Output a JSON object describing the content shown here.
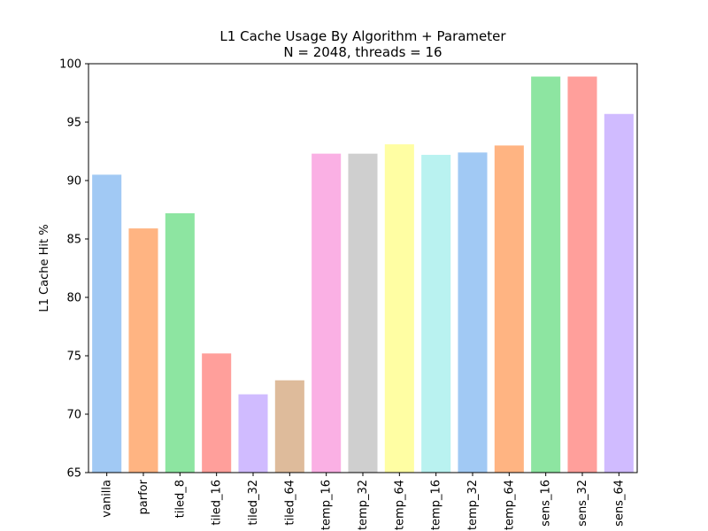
{
  "chart_data": {
    "type": "bar",
    "title": "L1 Cache Usage By Algorithm + Parameter",
    "subtitle": "N = 2048, threads = 16",
    "xlabel": "",
    "ylabel": "L1 Cache Hit %",
    "ylim": [
      65,
      100
    ],
    "yticks": [
      "65",
      "70",
      "75",
      "80",
      "85",
      "90",
      "95",
      "100"
    ],
    "grid": false,
    "categories": [
      "vanilla",
      "parfor",
      "tiled_8",
      "tiled_16",
      "tiled_32",
      "tiled_64",
      "temp_16",
      "temp_32",
      "temp_64",
      "temp_16",
      "temp_32",
      "temp_64",
      "sens_16",
      "sens_32",
      "sens_64"
    ],
    "values": [
      90.5,
      85.9,
      87.2,
      75.2,
      71.7,
      72.9,
      92.3,
      92.3,
      93.1,
      92.2,
      92.4,
      93.0,
      98.9,
      98.9,
      95.7
    ],
    "colors": [
      "#a1c9f4",
      "#ffb482",
      "#8de5a1",
      "#ff9f9b",
      "#d0bbff",
      "#debb9b",
      "#fab0e4",
      "#cfcfcf",
      "#fffea3",
      "#b9f2f0",
      "#a1c9f4",
      "#ffb482",
      "#8de5a1",
      "#ff9f9b",
      "#d0bbff"
    ]
  }
}
